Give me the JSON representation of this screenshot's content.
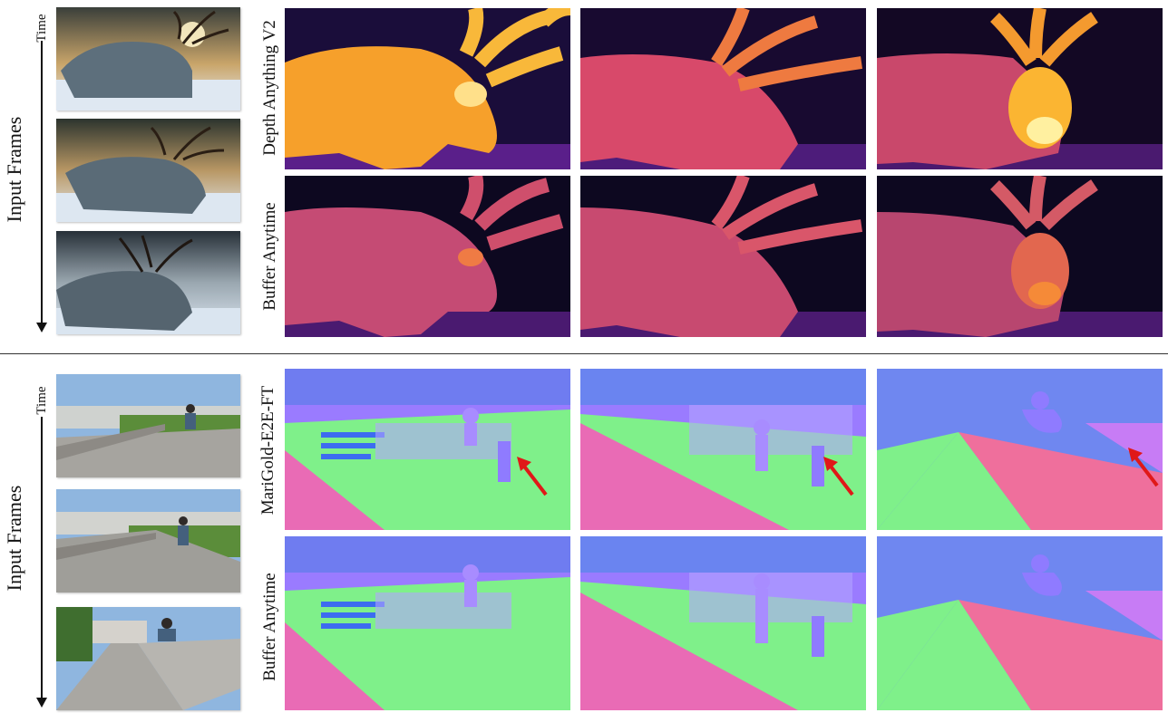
{
  "top_section": {
    "side_label": "Input Frames",
    "time_label": "Time",
    "row_labels": [
      "Depth Anything V2",
      "Buffer Anytime"
    ]
  },
  "bottom_section": {
    "side_label": "Input Frames",
    "time_label": "Time",
    "row_labels": [
      "MariGold-E2E-FT",
      "Buffer Anytime"
    ]
  },
  "icons": {
    "time_arrow": "down-arrow-icon",
    "highlight_arrow": "red-arrow-icon"
  },
  "colors": {
    "arrow_red": "#e01818",
    "depth_dark": "#0d0820",
    "depth_bright": "#fdb42f",
    "normal_green": "#7ef58a",
    "normal_pink": "#e86bb0",
    "normal_purple": "#a77aff"
  }
}
